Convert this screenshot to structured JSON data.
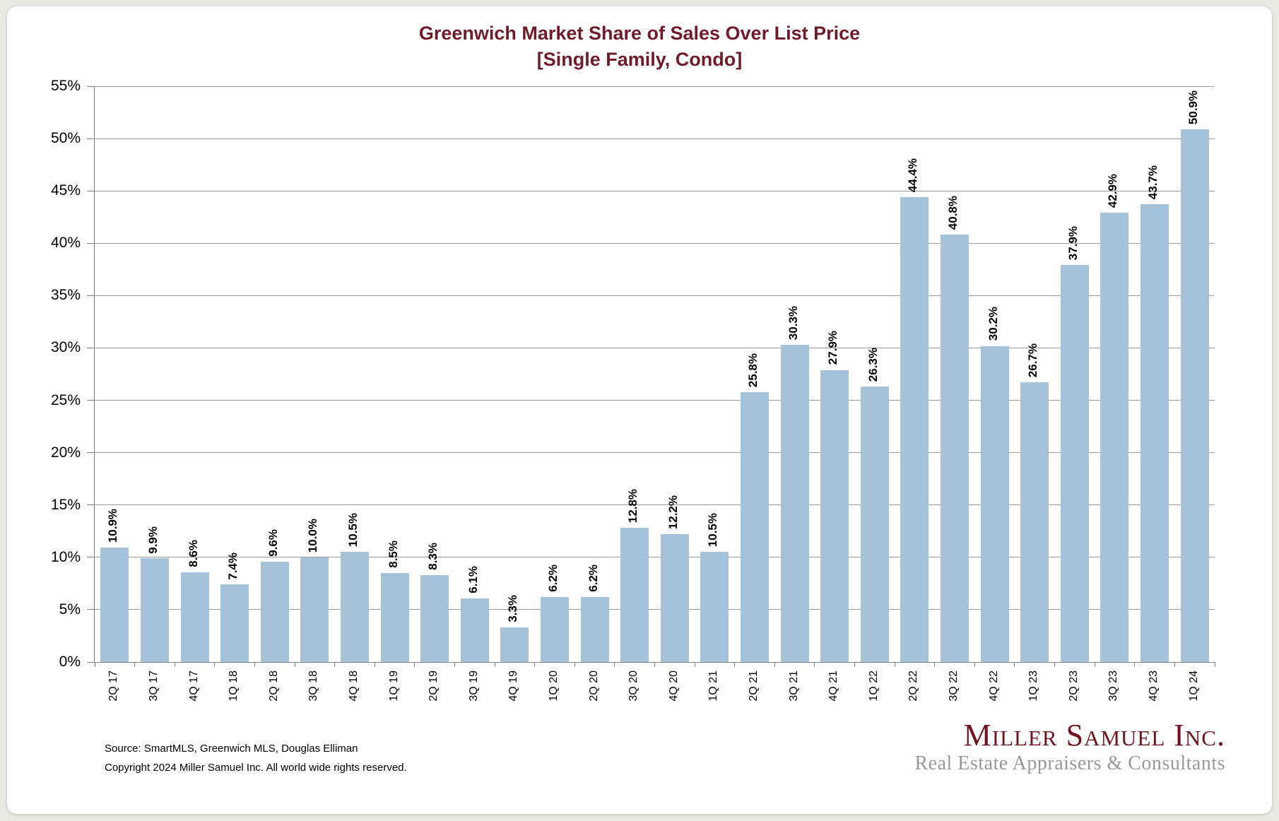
{
  "title": {
    "line1": "Greenwich Market Share of Sales Over List Price",
    "line2": "[Single Family, Condo]"
  },
  "chart_data": {
    "type": "bar",
    "title": "Greenwich Market Share of Sales Over List Price [Single Family, Condo]",
    "categories": [
      "2Q 17",
      "3Q 17",
      "4Q 17",
      "1Q 18",
      "2Q 18",
      "3Q 18",
      "4Q 18",
      "1Q 19",
      "2Q 19",
      "3Q 19",
      "4Q 19",
      "1Q 20",
      "2Q 20",
      "3Q 20",
      "4Q 20",
      "1Q 21",
      "2Q 21",
      "3Q 21",
      "4Q 21",
      "1Q 22",
      "2Q 22",
      "3Q 22",
      "4Q 22",
      "1Q 23",
      "2Q 23",
      "3Q 23",
      "4Q 23",
      "1Q 24"
    ],
    "values": [
      10.9,
      9.9,
      8.6,
      7.4,
      9.6,
      10.0,
      10.5,
      8.5,
      8.3,
      6.1,
      3.3,
      6.2,
      6.2,
      12.8,
      12.2,
      10.5,
      25.8,
      30.3,
      27.9,
      26.3,
      44.4,
      40.8,
      30.2,
      26.7,
      37.9,
      42.9,
      43.7,
      50.9
    ],
    "value_labels": [
      "10.9%",
      "9.9%",
      "8.6%",
      "7.4%",
      "9.6%",
      "10.0%",
      "10.5%",
      "8.5%",
      "8.3%",
      "6.1%",
      "3.3%",
      "6.2%",
      "6.2%",
      "12.8%",
      "12.2%",
      "10.5%",
      "25.8%",
      "30.3%",
      "27.9%",
      "26.3%",
      "44.4%",
      "40.8%",
      "30.2%",
      "26.7%",
      "37.9%",
      "42.9%",
      "43.7%",
      "50.9%"
    ],
    "xlabel": "",
    "ylabel": "",
    "ylim": [
      0,
      55
    ],
    "yticks": [
      0,
      5,
      10,
      15,
      20,
      25,
      30,
      35,
      40,
      45,
      50,
      55
    ],
    "ytick_labels": [
      "0%",
      "5%",
      "10%",
      "15%",
      "20%",
      "25%",
      "30%",
      "35%",
      "40%",
      "45%",
      "50%",
      "55%"
    ],
    "grid": true,
    "legend": "none"
  },
  "colors": {
    "bar": "#a6c2d9",
    "title": "#6e1c2b",
    "logo": "#6d1420",
    "tagline": "#989898",
    "grid": "#9b9b9b",
    "axis": "#7f7f7f",
    "bg": "#e9e9e4",
    "card": "#ffffff"
  },
  "footer": {
    "source": "Source: SmartMLS, Greenwich MLS, Douglas Elliman",
    "copyright": "Copyright 2024 Miller Samuel Inc.  All world wide rights reserved."
  },
  "logo": {
    "name": "Miller Samuel Inc.",
    "tagline": "Real Estate Appraisers & Consultants"
  }
}
